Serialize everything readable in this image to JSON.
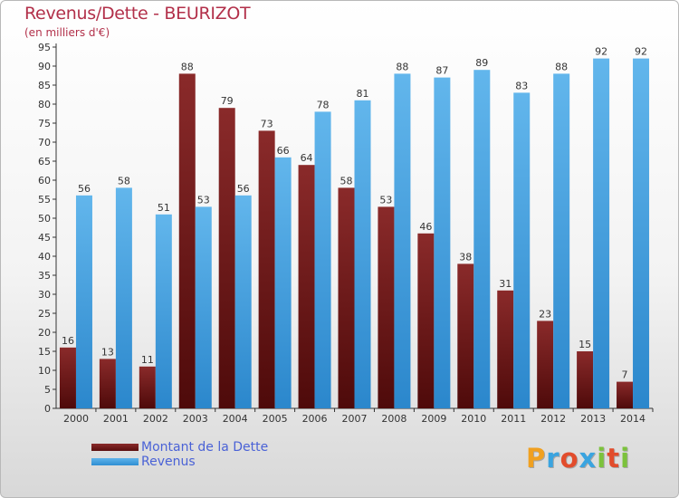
{
  "header": {
    "title": "Revenus/Dette - BEURIZOT",
    "subtitle": "(en milliers d'€)"
  },
  "legend": {
    "items": [
      {
        "label": "Montant de la Dette"
      },
      {
        "label": "Revenus"
      }
    ]
  },
  "logo": {
    "text": "Proxiti",
    "letters": [
      "P",
      "r",
      "o",
      "x",
      "i",
      "t",
      "i"
    ]
  },
  "colors": {
    "debt": "#6e1a1a",
    "revenue": "#3f9ee0",
    "title": "#b2304a",
    "legend_text": "#4a62d6"
  },
  "chart_data": {
    "type": "bar",
    "title": "Revenus/Dette - BEURIZOT",
    "subtitle": "(en milliers d'€)",
    "categories": [
      "2000",
      "2001",
      "2002",
      "2003",
      "2004",
      "2005",
      "2006",
      "2007",
      "2008",
      "2009",
      "2010",
      "2011",
      "2012",
      "2013",
      "2014"
    ],
    "series": [
      {
        "name": "Montant de la Dette",
        "values": [
          16,
          13,
          11,
          88,
          79,
          73,
          64,
          58,
          53,
          46,
          38,
          31,
          23,
          15,
          7
        ]
      },
      {
        "name": "Revenus",
        "values": [
          56,
          58,
          51,
          53,
          56,
          66,
          78,
          81,
          88,
          87,
          89,
          83,
          88,
          92,
          92
        ]
      }
    ],
    "ylim": [
      0,
      95
    ],
    "ytick_step": 5,
    "grid": false,
    "legend_position": "bottom-left",
    "data_labels": true
  }
}
